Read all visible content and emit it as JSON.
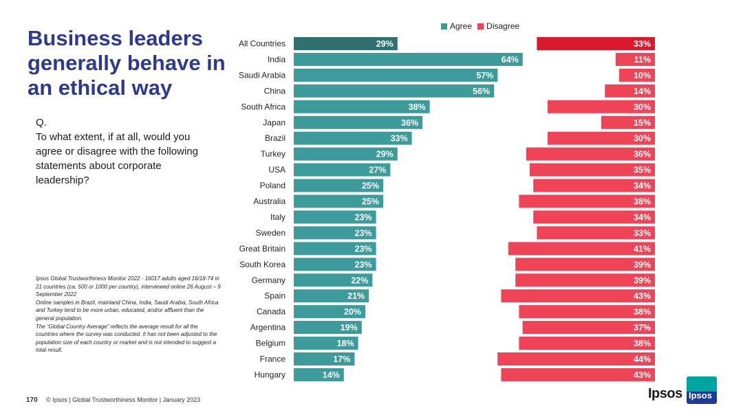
{
  "title": "Business leaders generally behave in an ethical way",
  "question": {
    "label": "Q.",
    "text": "To what extent, if at all, would you agree or disagree with the following statements about corporate leadership?"
  },
  "notes": [
    "Ipsos Global Trustworthiness Monitor 2022 - 16017 adults aged 16/18-74 in 21 countries (ca. 500 or 1000 per country), interviewed online 26 August – 9 September 2022",
    "Online samples in Brazil, mainland China, India, Saudi Arabia, South Africa and Turkey tend to be more urban, educated, and/or affluent than the general population.",
    "The “Global Country Average” reflects the average result for all the countries where the survey was conducted. It has not been adjusted to the population size of each country or market and is not intended to suggest a total result."
  ],
  "footer": {
    "page_number": "170",
    "text": "© Ipsos | Global Trustworthiness Monitor | January 2023"
  },
  "logo": {
    "text": "Ipsos",
    "badge_text": "Ipsos"
  },
  "colors": {
    "agree": "#3d9b9b",
    "agree_highlight": "#2f7070",
    "disagree": "#ef4358",
    "disagree_highlight": "#d9192e"
  },
  "chart_data": {
    "type": "bar",
    "orientation": "horizontal-diverging",
    "categories": [
      "All Countries",
      "India",
      "Saudi Arabia",
      "China",
      "South Africa",
      "Japan",
      "Brazil",
      "Turkey",
      "USA",
      "Poland",
      "Australia",
      "Italy",
      "Sweden",
      "Great Britain",
      "South Korea",
      "Germany",
      "Spain",
      "Canada",
      "Argentina",
      "Belgium",
      "France",
      "Hungary"
    ],
    "series": [
      {
        "name": "Agree",
        "values": [
          29,
          64,
          57,
          56,
          38,
          36,
          33,
          29,
          27,
          25,
          25,
          23,
          23,
          23,
          23,
          22,
          21,
          20,
          19,
          18,
          17,
          14
        ]
      },
      {
        "name": "Disagree",
        "values": [
          33,
          11,
          10,
          14,
          30,
          15,
          30,
          36,
          35,
          34,
          38,
          34,
          33,
          41,
          39,
          39,
          43,
          38,
          37,
          38,
          44,
          43
        ]
      }
    ],
    "value_suffix": "%",
    "legend": "top",
    "highlight_category": "All Countries",
    "grid": false,
    "xlim": [
      0,
      100
    ]
  }
}
